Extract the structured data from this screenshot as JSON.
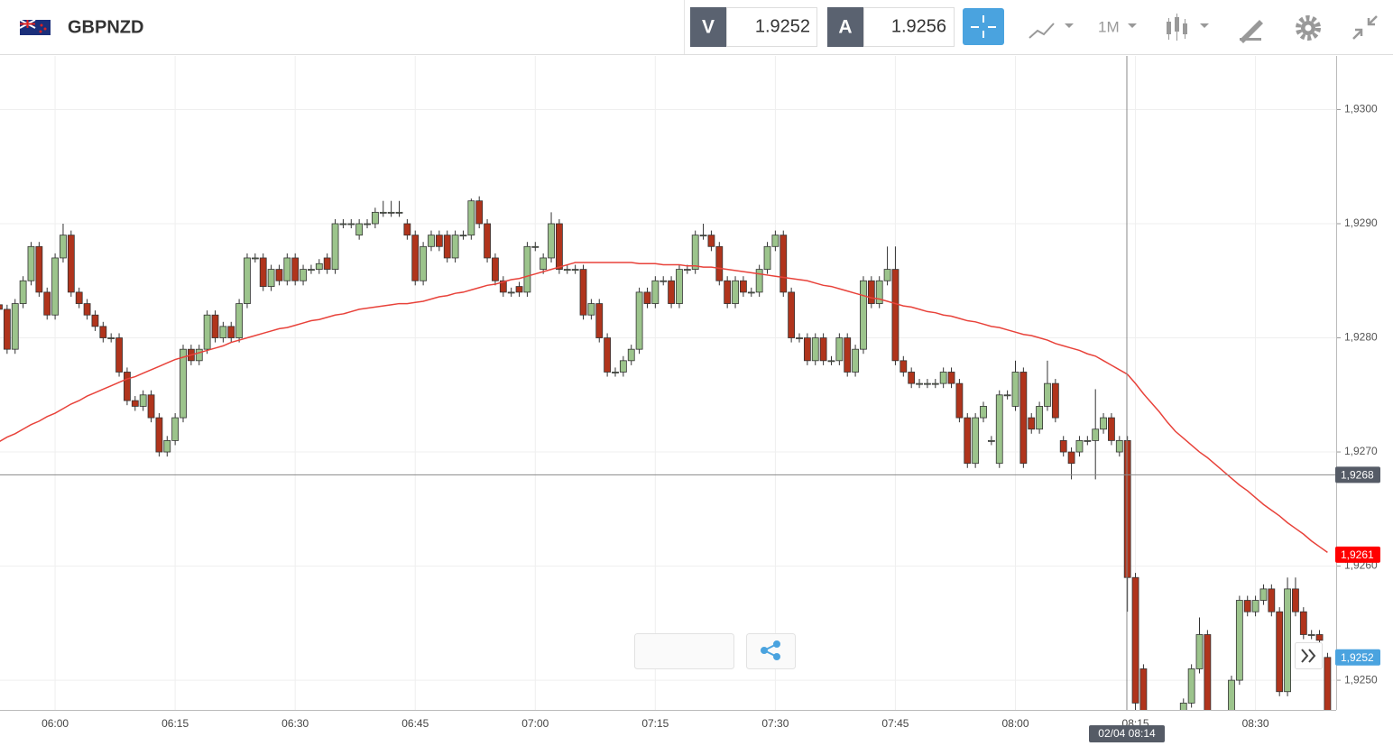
{
  "toolbar": {
    "sell_label": "V",
    "sell": 1.9252,
    "buy_label": "A",
    "buy": 1.9256,
    "timeframe": "1M"
  },
  "chart_data": {
    "type": "candlestick",
    "title": "GBPNZD",
    "categories": [
      null,
      null,
      null,
      null,
      null,
      null,
      null,
      "06:00",
      null,
      null,
      null,
      null,
      null,
      null,
      null,
      null,
      null,
      null,
      null,
      null,
      null,
      null,
      "06:15",
      null,
      null,
      null,
      null,
      null,
      null,
      null,
      null,
      null,
      null,
      null,
      null,
      null,
      null,
      "06:30",
      null,
      null,
      null,
      null,
      null,
      null,
      null,
      null,
      null,
      null,
      null,
      null,
      null,
      null,
      "06:45",
      null,
      null,
      null,
      null,
      null,
      null,
      null,
      null,
      null,
      null,
      null,
      null,
      null,
      null,
      "07:00",
      null,
      null,
      null,
      null,
      null,
      null,
      null,
      null,
      null,
      null,
      null,
      null,
      null,
      null,
      "07:15",
      null,
      null,
      null,
      null,
      null,
      null,
      null,
      null,
      null,
      null,
      null,
      null,
      null,
      null,
      "07:30",
      null,
      null,
      null,
      null,
      null,
      null,
      null,
      null,
      null,
      null,
      null,
      null,
      null,
      null,
      "07:45",
      null,
      null,
      null,
      null,
      null,
      null,
      null,
      null,
      null,
      null,
      null,
      null,
      null,
      null,
      "08:00",
      null,
      null,
      null,
      null,
      null,
      null,
      null,
      null,
      null,
      null,
      null,
      null,
      null,
      null,
      "08:15",
      null,
      null,
      null,
      null,
      null,
      null,
      null,
      null,
      null,
      null,
      null,
      null,
      null,
      null,
      "08:30",
      null,
      null,
      null,
      null,
      null,
      null,
      null,
      null,
      null
    ],
    "candles": {
      "up_color": "#9cc48c",
      "down_color": "#b0341c",
      "open": [
        1.92829,
        1.92825,
        1.9279,
        1.9283,
        1.9285,
        1.9288,
        1.9284,
        1.9282,
        1.9287,
        1.9289,
        1.9284,
        1.9283,
        1.9282,
        1.9281,
        1.928,
        1.928,
        1.9277,
        1.92745,
        1.9274,
        1.9275,
        1.9273,
        1.927,
        1.9271,
        1.9273,
        1.9279,
        1.9278,
        1.9279,
        1.9282,
        1.928,
        1.9281,
        1.928,
        1.9283,
        1.9287,
        1.9287,
        1.92845,
        1.9286,
        1.9285,
        1.9287,
        1.9285,
        1.9286,
        1.9286,
        1.9287,
        1.9286,
        1.929,
        1.929,
        1.9289,
        1.929,
        1.929,
        1.9291,
        1.9291,
        1.9291,
        1.929,
        1.9289,
        1.9285,
        1.9288,
        1.9289,
        1.9289,
        1.9287,
        1.9289,
        1.9289,
        1.9292,
        1.929,
        1.9287,
        1.9285,
        1.9284,
        1.92845,
        1.9284,
        1.9288,
        1.9286,
        1.9287,
        1.929,
        1.9286,
        1.9286,
        1.9286,
        1.9282,
        1.9283,
        1.928,
        1.9277,
        1.9277,
        1.9278,
        1.9279,
        1.9284,
        1.9283,
        1.9285,
        1.9285,
        1.9283,
        1.9286,
        1.9286,
        1.9289,
        1.9289,
        1.9288,
        1.9285,
        1.9283,
        1.9285,
        1.9284,
        1.9284,
        1.9286,
        1.9288,
        1.9289,
        1.9284,
        1.928,
        1.928,
        1.9278,
        1.928,
        1.9278,
        1.9278,
        1.928,
        1.9277,
        1.9279,
        1.9285,
        1.9283,
        1.9285,
        1.9286,
        1.9278,
        1.9277,
        1.9276,
        1.9276,
        1.9276,
        1.9276,
        1.9277,
        1.9276,
        1.9273,
        1.9269,
        1.9273,
        1.9271,
        1.9269,
        1.9275,
        1.9274,
        1.9277,
        1.9273,
        1.9272,
        1.9274,
        1.9276,
        1.9271,
        1.927,
        1.927,
        1.9271,
        1.9271,
        1.9272,
        1.9273,
        1.927,
        1.9271,
        1.9259,
        1.9251,
        1.9247,
        1.9244,
        1.9243,
        1.9245,
        1.9247,
        1.9248,
        1.9251,
        1.9254,
        1.9247,
        1.9246,
        1.9247,
        1.925,
        1.9257,
        1.9256,
        1.9257,
        1.9258,
        1.9256,
        1.9249,
        1.9258,
        1.9256,
        1.9254,
        1.9254,
        1.9252
      ],
      "high": [
        1.92833,
        1.92829,
        1.92834,
        1.92854,
        1.92884,
        1.92884,
        1.92844,
        1.92874,
        1.929,
        1.92894,
        1.92844,
        1.92834,
        1.92824,
        1.92814,
        1.92804,
        1.92804,
        1.92774,
        1.92749,
        1.92754,
        1.92754,
        1.92734,
        1.92714,
        1.92734,
        1.92794,
        1.92794,
        1.92794,
        1.92824,
        1.92824,
        1.92814,
        1.92814,
        1.92834,
        1.92874,
        1.92874,
        1.92874,
        1.92864,
        1.92864,
        1.92874,
        1.92874,
        1.92864,
        1.92864,
        1.92869,
        1.92874,
        1.92904,
        1.92904,
        1.92904,
        1.92904,
        1.92904,
        1.92914,
        1.9292,
        1.9292,
        1.9292,
        1.92904,
        1.92894,
        1.92884,
        1.92894,
        1.92894,
        1.92894,
        1.92894,
        1.92894,
        1.92922,
        1.92924,
        1.92904,
        1.92874,
        1.92854,
        1.92844,
        1.92849,
        1.92884,
        1.92884,
        1.92874,
        1.9291,
        1.92904,
        1.92864,
        1.92864,
        1.92864,
        1.92834,
        1.92834,
        1.92804,
        1.92774,
        1.92784,
        1.92794,
        1.92844,
        1.92844,
        1.92854,
        1.92854,
        1.92854,
        1.92864,
        1.92864,
        1.92894,
        1.929,
        1.92894,
        1.92884,
        1.92854,
        1.92854,
        1.92854,
        1.92844,
        1.92864,
        1.92884,
        1.92894,
        1.92894,
        1.92844,
        1.92804,
        1.92804,
        1.92804,
        1.92804,
        1.92784,
        1.92804,
        1.92804,
        1.92794,
        1.92854,
        1.92854,
        1.92854,
        1.9288,
        1.9288,
        1.92784,
        1.92774,
        1.92764,
        1.92764,
        1.92764,
        1.92774,
        1.92774,
        1.92764,
        1.92734,
        1.92734,
        1.92744,
        1.92714,
        1.92754,
        1.92754,
        1.9278,
        1.92774,
        1.92734,
        1.92744,
        1.9278,
        1.92764,
        1.92714,
        1.92704,
        1.92714,
        1.92714,
        1.92755,
        1.92734,
        1.92734,
        1.92714,
        1.92714,
        1.92594,
        1.92514,
        1.92474,
        1.92444,
        1.92454,
        1.92474,
        1.92484,
        1.92514,
        1.92555,
        1.92544,
        1.92474,
        1.92474,
        1.92504,
        1.92574,
        1.92574,
        1.92574,
        1.92584,
        1.92584,
        1.92564,
        1.9259,
        1.9259,
        1.92564,
        1.92544,
        1.92544,
        1.92524
      ],
      "low": [
        1.92821,
        1.92786,
        1.92786,
        1.92826,
        1.92846,
        1.92836,
        1.92816,
        1.92816,
        1.92866,
        1.92836,
        1.92826,
        1.92816,
        1.92806,
        1.92796,
        1.92796,
        1.92766,
        1.92741,
        1.92736,
        1.92736,
        1.92726,
        1.92696,
        1.92696,
        1.92706,
        1.92726,
        1.92776,
        1.92776,
        1.92786,
        1.92796,
        1.92796,
        1.92796,
        1.92796,
        1.92826,
        1.92866,
        1.92841,
        1.92841,
        1.92846,
        1.92846,
        1.92846,
        1.92846,
        1.92856,
        1.92856,
        1.92856,
        1.92856,
        1.92896,
        1.92896,
        1.92886,
        1.92896,
        1.92896,
        1.92906,
        1.92906,
        1.92906,
        1.92886,
        1.92846,
        1.92846,
        1.92876,
        1.92876,
        1.92866,
        1.92866,
        1.92886,
        1.92886,
        1.92896,
        1.92866,
        1.92846,
        1.92836,
        1.92836,
        1.92836,
        1.92836,
        1.92876,
        1.92856,
        1.92866,
        1.92856,
        1.92856,
        1.92856,
        1.92816,
        1.92816,
        1.92796,
        1.92766,
        1.92766,
        1.92766,
        1.92776,
        1.92786,
        1.92826,
        1.92826,
        1.92846,
        1.92826,
        1.92826,
        1.92856,
        1.92856,
        1.92886,
        1.92876,
        1.92846,
        1.92826,
        1.92826,
        1.92836,
        1.92836,
        1.92836,
        1.92856,
        1.92876,
        1.92836,
        1.92796,
        1.92796,
        1.92776,
        1.92776,
        1.92776,
        1.92776,
        1.92776,
        1.92766,
        1.92766,
        1.92786,
        1.92826,
        1.92826,
        1.92846,
        1.92776,
        1.92766,
        1.92756,
        1.92756,
        1.92756,
        1.92756,
        1.92756,
        1.92756,
        1.92726,
        1.92686,
        1.92686,
        1.92726,
        1.92706,
        1.92686,
        1.92746,
        1.92736,
        1.92686,
        1.92716,
        1.92716,
        1.92736,
        1.92726,
        1.92696,
        1.92676,
        1.92696,
        1.92706,
        1.92676,
        1.92716,
        1.92706,
        1.92696,
        1.9256,
        1.9247,
        1.92466,
        1.92436,
        1.92426,
        1.92426,
        1.92446,
        1.92466,
        1.92476,
        1.92506,
        1.92466,
        1.92456,
        1.92456,
        1.92466,
        1.92496,
        1.92556,
        1.92556,
        1.92566,
        1.92556,
        1.92486,
        1.92486,
        1.92556,
        1.92536,
        1.92536,
        1.92531,
        1.92466
      ],
      "close": [
        1.92825,
        1.9279,
        1.9283,
        1.9285,
        1.9288,
        1.9284,
        1.9282,
        1.9287,
        1.9289,
        1.9284,
        1.9283,
        1.9282,
        1.9281,
        1.928,
        1.928,
        1.9277,
        1.92745,
        1.9274,
        1.9275,
        1.9273,
        1.927,
        1.9271,
        1.9273,
        1.9279,
        1.9278,
        1.9279,
        1.9282,
        1.928,
        1.9281,
        1.928,
        1.9283,
        1.9287,
        1.9287,
        1.92845,
        1.9286,
        1.9285,
        1.9287,
        1.9285,
        1.9286,
        1.9286,
        1.92865,
        1.9286,
        1.929,
        1.929,
        1.929,
        1.929,
        1.929,
        1.9291,
        1.9291,
        1.9291,
        1.9291,
        1.9289,
        1.9285,
        1.9288,
        1.9289,
        1.9288,
        1.9287,
        1.9289,
        1.9289,
        1.9292,
        1.929,
        1.9287,
        1.9285,
        1.9284,
        1.9284,
        1.9284,
        1.9288,
        1.9288,
        1.9287,
        1.929,
        1.9286,
        1.9286,
        1.9286,
        1.9282,
        1.9283,
        1.928,
        1.9277,
        1.9277,
        1.9278,
        1.9279,
        1.9284,
        1.9283,
        1.9285,
        1.9285,
        1.9283,
        1.9286,
        1.9286,
        1.9289,
        1.9289,
        1.9288,
        1.9285,
        1.9283,
        1.9285,
        1.9284,
        1.9284,
        1.9286,
        1.9288,
        1.9289,
        1.9284,
        1.928,
        1.928,
        1.9278,
        1.928,
        1.9278,
        1.9278,
        1.928,
        1.9277,
        1.9279,
        1.9285,
        1.9283,
        1.9285,
        1.9286,
        1.9278,
        1.9277,
        1.9276,
        1.9276,
        1.9276,
        1.9276,
        1.9277,
        1.9276,
        1.9273,
        1.9269,
        1.9273,
        1.9274,
        1.9271,
        1.9275,
        1.9275,
        1.9277,
        1.9269,
        1.9272,
        1.9274,
        1.9276,
        1.9273,
        1.927,
        1.9269,
        1.9271,
        1.9271,
        1.9272,
        1.9273,
        1.9271,
        1.9271,
        1.9259,
        1.9248,
        1.9247,
        1.9244,
        1.9243,
        1.9245,
        1.9247,
        1.9248,
        1.9251,
        1.9254,
        1.9247,
        1.9246,
        1.9247,
        1.925,
        1.9257,
        1.9256,
        1.9257,
        1.9258,
        1.9256,
        1.9249,
        1.9258,
        1.9256,
        1.9254,
        1.9254,
        1.92535,
        1.9247
      ]
    },
    "ma": {
      "color": "#e8423a",
      "values": [
        1.92709,
        1.92713,
        1.92716,
        1.9272,
        1.92724,
        1.92727,
        1.92731,
        1.92734,
        1.92738,
        1.92742,
        1.92745,
        1.92749,
        1.92752,
        1.92755,
        1.92758,
        1.92761,
        1.92764,
        1.92766,
        1.92769,
        1.92772,
        1.92775,
        1.92778,
        1.92781,
        1.92783,
        1.92785,
        1.92787,
        1.92789,
        1.92791,
        1.92793,
        1.92796,
        1.92798,
        1.928,
        1.92802,
        1.92804,
        1.92806,
        1.92808,
        1.92809,
        1.92811,
        1.92813,
        1.92815,
        1.92816,
        1.92818,
        1.9282,
        1.92821,
        1.92823,
        1.92825,
        1.92826,
        1.92827,
        1.92828,
        1.92829,
        1.9283,
        1.9283,
        1.92831,
        1.92832,
        1.92834,
        1.92836,
        1.92837,
        1.92839,
        1.9284,
        1.92842,
        1.92844,
        1.92846,
        1.92847,
        1.92849,
        1.92851,
        1.92852,
        1.92854,
        1.92856,
        1.92858,
        1.9286,
        1.92862,
        1.92864,
        1.92866,
        1.92866,
        1.92866,
        1.92866,
        1.92866,
        1.92866,
        1.92866,
        1.92866,
        1.92865,
        1.92865,
        1.92865,
        1.92864,
        1.92864,
        1.92864,
        1.92863,
        1.92863,
        1.92862,
        1.92862,
        1.92861,
        1.9286,
        1.92859,
        1.92858,
        1.92857,
        1.92856,
        1.92855,
        1.92854,
        1.92853,
        1.92852,
        1.92851,
        1.9285,
        1.92848,
        1.92846,
        1.92845,
        1.92843,
        1.92841,
        1.92839,
        1.92837,
        1.92835,
        1.92834,
        1.92832,
        1.9283,
        1.92828,
        1.92827,
        1.92825,
        1.92823,
        1.92822,
        1.9282,
        1.92819,
        1.92817,
        1.92815,
        1.92814,
        1.92812,
        1.9281,
        1.92809,
        1.92807,
        1.92805,
        1.92803,
        1.92802,
        1.928,
        1.92798,
        1.92795,
        1.92793,
        1.92791,
        1.92789,
        1.92786,
        1.92784,
        1.9278,
        1.92776,
        1.92772,
        1.92768,
        1.9276,
        1.92751,
        1.92743,
        1.92735,
        1.92726,
        1.92718,
        1.92712,
        1.92706,
        1.927,
        1.92695,
        1.92689,
        1.92683,
        1.92677,
        1.92671,
        1.92666,
        1.9266,
        1.92654,
        1.92649,
        1.92644,
        1.92638,
        1.92633,
        1.92628,
        1.92622,
        1.92617,
        1.92612
      ]
    },
    "ylim": [
      1.92474,
      1.93047
    ],
    "yticks": [
      {
        "value": 1.93,
        "label": "1,9300"
      },
      {
        "value": 1.929,
        "label": "1,9290"
      },
      {
        "value": 1.928,
        "label": "1,9280"
      },
      {
        "value": 1.927,
        "label": "1,9270"
      },
      {
        "value": 1.926,
        "label": "1,9260"
      },
      {
        "value": 1.925,
        "label": "1,9250"
      }
    ],
    "grid": true,
    "crosshair": {
      "value": 1.9268,
      "label": "1,9268",
      "time": "02/04 08:14",
      "color": "#555b66"
    },
    "markers": [
      {
        "value": 1.9261,
        "label": "1,9261",
        "color": "#ff0000"
      },
      {
        "value": 1.9252,
        "label": "1,9252",
        "color": "#4aa3df"
      }
    ]
  }
}
